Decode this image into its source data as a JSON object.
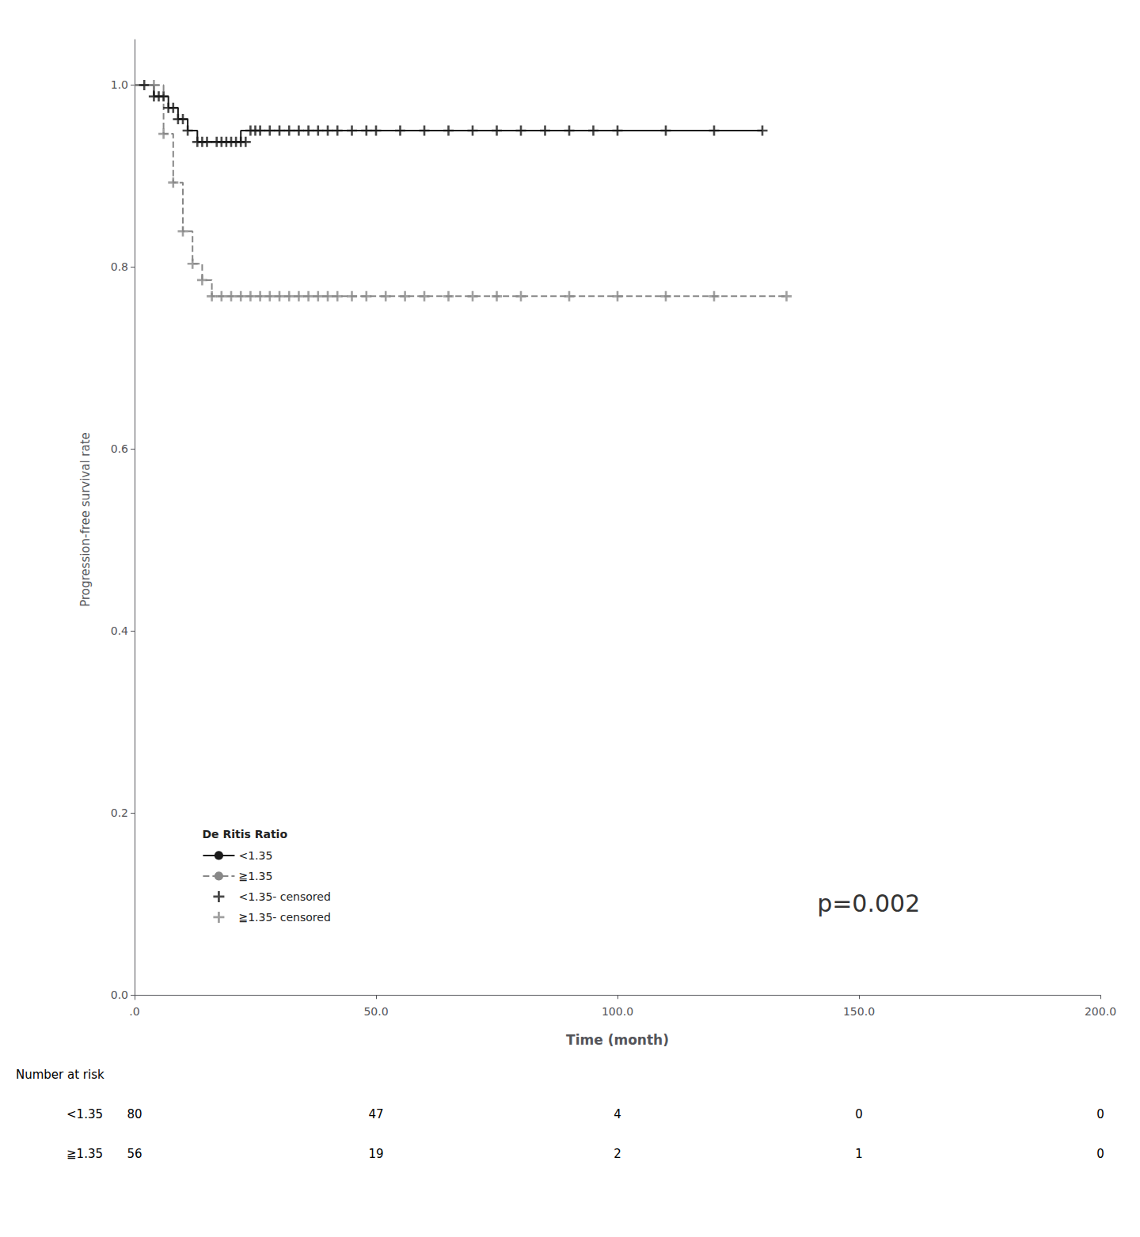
{
  "chart_data": {
    "type": "line",
    "x_label": "Time (month)",
    "y_label": "Progression-free survival rate",
    "xlim": [
      0,
      200
    ],
    "ylim": [
      -0.005,
      1.05
    ],
    "xticks": [
      {
        "value": 0,
        "label": ".0"
      },
      {
        "value": 50,
        "label": "50.0"
      },
      {
        "value": 100,
        "label": "100.0"
      },
      {
        "value": 150,
        "label": "150.0"
      },
      {
        "value": 200,
        "label": "200.0"
      }
    ],
    "yticks": [
      {
        "value": 0.0,
        "label": "0.0"
      },
      0.2,
      0.4,
      0.6,
      0.8,
      {
        "value": 1.0,
        "label": "1.0"
      }
    ],
    "grid": false,
    "legend": "lower left",
    "legend_title": "De Ritis Ratio",
    "annotations": [
      {
        "text": "p=0.002"
      }
    ],
    "series": [
      {
        "name": "<1.35",
        "type": "step",
        "color": "#1a1a1a",
        "line_style": "solid",
        "x": [
          0,
          2,
          4,
          5,
          6,
          7,
          8,
          9,
          10,
          11,
          12,
          13,
          14,
          15,
          16,
          17,
          18,
          19,
          20,
          21,
          22,
          24,
          25,
          26,
          27,
          28,
          30,
          32,
          34,
          36,
          38,
          40,
          130
        ],
        "values": [
          1.0,
          1.0,
          0.9875,
          0.9875,
          0.9875,
          0.975,
          0.975,
          0.9625,
          0.9625,
          0.95,
          0.95,
          0.9375,
          0.9375,
          0.9375,
          0.9375,
          0.9375,
          0.9375,
          0.9375,
          0.9375,
          0.9375,
          0.95,
          0.95,
          0.95,
          0.95,
          0.95,
          0.95,
          0.95,
          0.95,
          0.95,
          0.95,
          0.95,
          0.95,
          0.95
        ]
      },
      {
        "name": "≧1.35",
        "type": "step",
        "color": "#888888",
        "line_style": "dashed",
        "x": [
          0,
          4,
          6,
          8,
          10,
          12,
          14,
          16,
          18,
          20,
          22,
          24,
          28,
          30,
          135
        ],
        "values": [
          1.0,
          1.0,
          0.9464,
          0.8929,
          0.8393,
          0.8036,
          0.7857,
          0.7679,
          0.7679,
          0.7679,
          0.7679,
          0.7679,
          0.7679,
          0.7679,
          0.7679
        ]
      },
      {
        "name": "<1.35- censored",
        "type": "scatter",
        "color": "#1a1a1a",
        "marker": "+",
        "x": [
          2,
          4,
          5,
          6,
          7,
          8,
          9,
          10,
          11,
          13,
          14,
          15,
          17,
          18,
          19,
          20,
          21,
          22,
          23,
          24,
          25,
          26,
          28,
          30,
          32,
          34,
          36,
          38,
          40,
          42,
          45,
          48,
          50,
          55,
          60,
          65,
          70,
          75,
          80,
          85,
          90,
          95,
          100,
          110,
          120,
          130
        ],
        "values": [
          1.0,
          0.9875,
          0.9875,
          0.9875,
          0.975,
          0.975,
          0.9625,
          0.9625,
          0.95,
          0.9375,
          0.9375,
          0.9375,
          0.9375,
          0.9375,
          0.9375,
          0.9375,
          0.9375,
          0.9375,
          0.9375,
          0.95,
          0.95,
          0.95,
          0.95,
          0.95,
          0.95,
          0.95,
          0.95,
          0.95,
          0.95,
          0.95,
          0.95,
          0.95,
          0.95,
          0.95,
          0.95,
          0.95,
          0.95,
          0.95,
          0.95,
          0.95,
          0.95,
          0.95,
          0.95,
          0.95,
          0.95,
          0.95
        ]
      },
      {
        "name": "≧1.35- censored",
        "type": "scatter",
        "color": "#888888",
        "marker": "+",
        "x": [
          4,
          6,
          8,
          10,
          12,
          14,
          16,
          18,
          20,
          22,
          24,
          26,
          28,
          30,
          32,
          34,
          36,
          38,
          40,
          42,
          45,
          48,
          52,
          56,
          60,
          65,
          70,
          75,
          80,
          90,
          100,
          110,
          120,
          135
        ],
        "values": [
          1.0,
          0.9464,
          0.8929,
          0.8393,
          0.8036,
          0.7857,
          0.7679,
          0.7679,
          0.7679,
          0.7679,
          0.7679,
          0.7679,
          0.7679,
          0.7679,
          0.7679,
          0.7679,
          0.7679,
          0.7679,
          0.7679,
          0.7679,
          0.7679,
          0.7679,
          0.7679,
          0.7679,
          0.7679,
          0.7679,
          0.7679,
          0.7679,
          0.7679,
          0.7679,
          0.7679,
          0.7679,
          0.7679,
          0.7679
        ]
      }
    ],
    "risk_table": {
      "title": "Number at risk",
      "times": [
        0,
        50,
        100,
        150,
        200
      ],
      "rows": [
        {
          "label": "<1.35",
          "values": [
            80,
            47,
            4,
            0,
            0
          ]
        },
        {
          "label": "≧1.35",
          "values": [
            56,
            19,
            2,
            1,
            0
          ]
        }
      ]
    }
  }
}
